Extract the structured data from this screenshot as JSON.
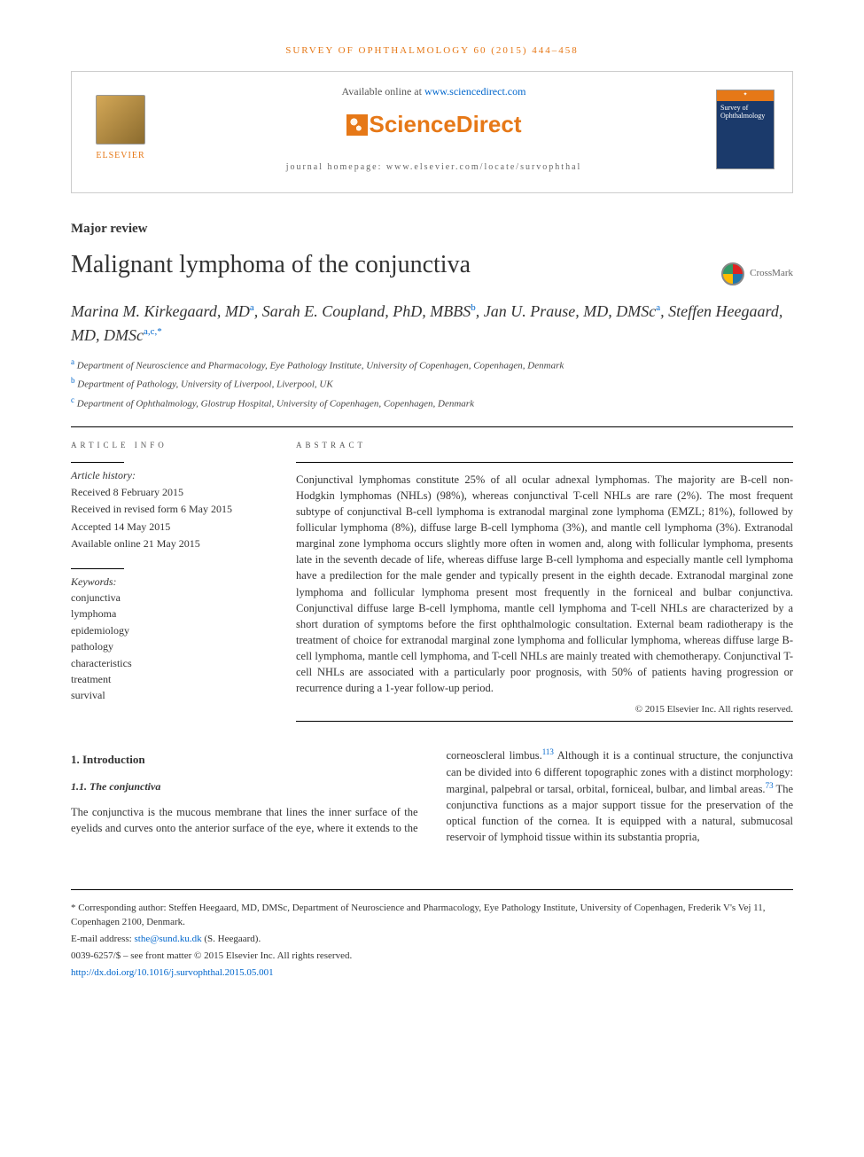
{
  "journal_ref": "SURVEY OF OPHTHALMOLOGY 60 (2015) 444–458",
  "band": {
    "elsevier": "ELSEVIER",
    "available_pre": "Available online at ",
    "available_link": "www.sciencedirect.com",
    "sciencedirect": "ScienceDirect",
    "homepage": "journal homepage: www.elsevier.com/locate/survophthal",
    "cover_issue": "Survey of Ophthalmology"
  },
  "article_type": "Major review",
  "title": "Malignant lymphoma of the conjunctiva",
  "crossmark": "CrossMark",
  "authors_html": "Marina M. Kirkegaard, MD|a|, Sarah E. Coupland, PhD, MBBS|b|, Jan U. Prause, MD, DMSc|a|, Steffen Heegaard, MD, DMSc|a,c,*|",
  "affiliations": [
    {
      "sup": "a",
      "text": "Department of Neuroscience and Pharmacology, Eye Pathology Institute, University of Copenhagen, Copenhagen, Denmark"
    },
    {
      "sup": "b",
      "text": "Department of Pathology, University of Liverpool, Liverpool, UK"
    },
    {
      "sup": "c",
      "text": "Department of Ophthalmology, Glostrup Hospital, University of Copenhagen, Copenhagen, Denmark"
    }
  ],
  "article_info_label": "ARTICLE INFO",
  "abstract_label": "ABSTRACT",
  "history": {
    "head": "Article history:",
    "lines": [
      "Received 8 February 2015",
      "Received in revised form 6 May 2015",
      "Accepted 14 May 2015",
      "Available online 21 May 2015"
    ]
  },
  "keywords": {
    "head": "Keywords:",
    "items": [
      "conjunctiva",
      "lymphoma",
      "epidemiology",
      "pathology",
      "characteristics",
      "treatment",
      "survival"
    ]
  },
  "abstract": "Conjunctival lymphomas constitute 25% of all ocular adnexal lymphomas. The majority are B-cell non-Hodgkin lymphomas (NHLs) (98%), whereas conjunctival T-cell NHLs are rare (2%). The most frequent subtype of conjunctival B-cell lymphoma is extranodal marginal zone lymphoma (EMZL; 81%), followed by follicular lymphoma (8%), diffuse large B-cell lymphoma (3%), and mantle cell lymphoma (3%). Extranodal marginal zone lymphoma occurs slightly more often in women and, along with follicular lymphoma, presents late in the seventh decade of life, whereas diffuse large B-cell lymphoma and especially mantle cell lymphoma have a predilection for the male gender and typically present in the eighth decade. Extranodal marginal zone lymphoma and follicular lymphoma present most frequently in the forniceal and bulbar conjunctiva. Conjunctival diffuse large B-cell lymphoma, mantle cell lymphoma and T-cell NHLs are characterized by a short duration of symptoms before the first ophthalmologic consultation. External beam radiotherapy is the treatment of choice for extranodal marginal zone lymphoma and follicular lymphoma, whereas diffuse large B-cell lymphoma, mantle cell lymphoma, and T-cell NHLs are mainly treated with chemotherapy. Conjunctival T-cell NHLs are associated with a particularly poor prognosis, with 50% of patients having progression or recurrence during a 1-year follow-up period.",
  "copyright": "© 2015 Elsevier Inc. All rights reserved.",
  "body": {
    "h1": "1.    Introduction",
    "h2": "1.1.    The conjunctiva",
    "p1_pre": "The conjunctiva is the mucous membrane that lines the inner surface of the eyelids and curves onto the anterior surface of the eye, where it extends to the corneoscleral limbus.",
    "p1_ref": "113",
    "p2_pre": "Although it is a continual structure, the conjunctiva can be divided into 6 different topographic zones with a distinct morphology: marginal, palpebral or tarsal, orbital, forniceal, bulbar, and limbal areas.",
    "p2_ref": "73",
    "p2_post": " The conjunctiva functions as a major support tissue for the preservation of the optical function of the cornea. It is equipped with a natural, submucosal reservoir of lymphoid tissue within its substantia propria,"
  },
  "footer": {
    "corr": "* Corresponding author: Steffen Heegaard, MD, DMSc, Department of Neuroscience and Pharmacology, Eye Pathology Institute, University of Copenhagen, Frederik V's Vej 11, Copenhagen 2100, Denmark.",
    "email_label": "E-mail address: ",
    "email": "sthe@sund.ku.dk",
    "email_after": " (S. Heegaard).",
    "issn": "0039-6257/$ – see front matter © 2015 Elsevier Inc. All rights reserved.",
    "doi": "http://dx.doi.org/10.1016/j.survophthal.2015.05.001"
  },
  "colors": {
    "orange": "#e67817",
    "link": "#0066cc"
  }
}
